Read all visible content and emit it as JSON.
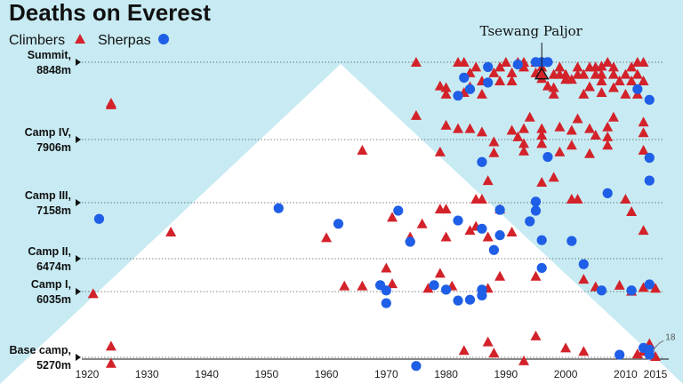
{
  "chart_data": {
    "type": "scatter",
    "title": "Deaths on Everest",
    "legend": [
      {
        "name": "Climbers",
        "color": "#d3222a",
        "marker": "triangle"
      },
      {
        "name": "Sherpas",
        "color": "#1f5ee6",
        "marker": "circle"
      }
    ],
    "y_categories": [
      {
        "line1": "Summit,",
        "line2": "8848m",
        "altitude": 8848
      },
      {
        "line1": "Camp IV,",
        "line2": "7906m",
        "altitude": 7906
      },
      {
        "line1": "Camp III,",
        "line2": "7158m",
        "altitude": 7158
      },
      {
        "line1": "Camp II,",
        "line2": "6474m",
        "altitude": 6474
      },
      {
        "line1": "Camp I,",
        "line2": "6035m",
        "altitude": 6035
      },
      {
        "line1": "Base camp,",
        "line2": "5270m",
        "altitude": 5270
      }
    ],
    "x_ticks": [
      1920,
      1930,
      1940,
      1950,
      1960,
      1970,
      1980,
      1990,
      2000,
      2010,
      2015
    ],
    "xlim": [
      1918,
      2016
    ],
    "grid": "horizontal dotted",
    "annotations": [
      {
        "text": "Tsewang Paljor",
        "x": 1996,
        "y": 8700
      },
      {
        "text": "18",
        "x": 2014,
        "y": 5380
      }
    ],
    "series": [
      {
        "name": "Climbers",
        "points": [
          [
            1975,
            8848
          ],
          [
            1982,
            8848
          ],
          [
            1983,
            8848
          ],
          [
            1990,
            8848
          ],
          [
            1992,
            8848
          ],
          [
            1993,
            8848
          ],
          [
            1995,
            8848
          ],
          [
            1985,
            8790
          ],
          [
            1989,
            8790
          ],
          [
            1993,
            8790
          ],
          [
            1996,
            8790
          ],
          [
            1999,
            8790
          ],
          [
            2002,
            8790
          ],
          [
            2004,
            8790
          ],
          [
            2005,
            8790
          ],
          [
            2006,
            8800
          ],
          [
            2007,
            8848
          ],
          [
            2008,
            8790
          ],
          [
            2011,
            8790
          ],
          [
            2012,
            8848
          ],
          [
            2013,
            8848
          ],
          [
            1984,
            8720
          ],
          [
            1988,
            8720
          ],
          [
            1991,
            8720
          ],
          [
            1995,
            8720
          ],
          [
            1996,
            8700
          ],
          [
            1998,
            8700
          ],
          [
            1999,
            8700
          ],
          [
            2000,
            8700
          ],
          [
            2002,
            8700
          ],
          [
            2003,
            8700
          ],
          [
            2005,
            8700
          ],
          [
            2006,
            8700
          ],
          [
            2008,
            8700
          ],
          [
            2010,
            8700
          ],
          [
            2012,
            8700
          ],
          [
            1986,
            8620
          ],
          [
            1989,
            8620
          ],
          [
            1991,
            8620
          ],
          [
            1996,
            8650
          ],
          [
            2000,
            8640
          ],
          [
            2001,
            8640
          ],
          [
            2006,
            8620
          ],
          [
            2009,
            8620
          ],
          [
            2011,
            8620
          ],
          [
            2013,
            8620
          ],
          [
            1979,
            8560
          ],
          [
            1980,
            8540
          ],
          [
            1984,
            8550
          ],
          [
            1997,
            8560
          ],
          [
            1998,
            8540
          ],
          [
            2004,
            8550
          ],
          [
            2008,
            8540
          ],
          [
            1980,
            8460
          ],
          [
            1983,
            8480
          ],
          [
            1986,
            8460
          ],
          [
            1998,
            8460
          ],
          [
            2003,
            8460
          ],
          [
            2006,
            8480
          ],
          [
            2010,
            8460
          ],
          [
            2012,
            8460
          ],
          [
            1924,
            8350
          ],
          [
            1924,
            8330
          ],
          [
            1975,
            8200
          ],
          [
            1994,
            8180
          ],
          [
            2002,
            8160
          ],
          [
            2008,
            8180
          ],
          [
            2013,
            8120
          ],
          [
            1980,
            8080
          ],
          [
            1982,
            8040
          ],
          [
            1984,
            8040
          ],
          [
            1986,
            8000
          ],
          [
            1991,
            8020
          ],
          [
            1993,
            8040
          ],
          [
            1996,
            8040
          ],
          [
            1999,
            8060
          ],
          [
            2001,
            8020
          ],
          [
            2004,
            8040
          ],
          [
            2007,
            8060
          ],
          [
            1992,
            7940
          ],
          [
            1996,
            7960
          ],
          [
            2005,
            7960
          ],
          [
            2007,
            7940
          ],
          [
            2013,
            7990
          ],
          [
            1988,
            7880
          ],
          [
            1993,
            7860
          ],
          [
            1996,
            7860
          ],
          [
            2001,
            7840
          ],
          [
            2007,
            7840
          ],
          [
            1966,
            7780
          ],
          [
            1979,
            7760
          ],
          [
            1988,
            7750
          ],
          [
            1993,
            7770
          ],
          [
            1999,
            7760
          ],
          [
            2004,
            7740
          ],
          [
            2013,
            7780
          ],
          [
            1987,
            7420
          ],
          [
            1996,
            7400
          ],
          [
            1998,
            7460
          ],
          [
            1985,
            7200
          ],
          [
            1986,
            7200
          ],
          [
            2001,
            7200
          ],
          [
            2002,
            7200
          ],
          [
            2010,
            7200
          ],
          [
            1979,
            7080
          ],
          [
            1980,
            7080
          ],
          [
            1989,
            7080
          ],
          [
            2011,
            7050
          ],
          [
            1971,
            6980
          ],
          [
            1976,
            6900
          ],
          [
            1985,
            6870
          ],
          [
            2013,
            6820
          ],
          [
            1934,
            6800
          ],
          [
            1960,
            6730
          ],
          [
            1974,
            6740
          ],
          [
            1980,
            6740
          ],
          [
            1984,
            6820
          ],
          [
            1987,
            6740
          ],
          [
            1991,
            6800
          ],
          [
            1970,
            6350
          ],
          [
            1979,
            6280
          ],
          [
            1989,
            6240
          ],
          [
            1995,
            6240
          ],
          [
            2003,
            6200
          ],
          [
            1963,
            6110
          ],
          [
            1966,
            6110
          ],
          [
            1971,
            6140
          ],
          [
            1977,
            6080
          ],
          [
            1981,
            6110
          ],
          [
            1987,
            6080
          ],
          [
            2005,
            6100
          ],
          [
            2009,
            6120
          ],
          [
            2011,
            6040
          ],
          [
            2013,
            6090
          ],
          [
            1921,
            6010
          ],
          [
            2015,
            6080
          ],
          [
            1924,
            5400
          ],
          [
            1987,
            5450
          ],
          [
            1995,
            5520
          ],
          [
            2003,
            5340
          ],
          [
            2012,
            5310
          ],
          [
            2013,
            5340
          ],
          [
            2015,
            5280
          ],
          [
            1924,
            5200
          ],
          [
            1983,
            5350
          ],
          [
            1988,
            5320
          ],
          [
            1993,
            5230
          ],
          [
            2000,
            5380
          ],
          [
            2014,
            5430
          ]
        ]
      },
      {
        "name": "Sherpas",
        "points": [
          [
            1987,
            8790
          ],
          [
            1992,
            8820
          ],
          [
            1995,
            8850
          ],
          [
            1996,
            8850
          ],
          [
            1997,
            8850
          ],
          [
            1983,
            8660
          ],
          [
            1987,
            8600
          ],
          [
            1984,
            8520
          ],
          [
            1982,
            8440
          ],
          [
            2012,
            8520
          ],
          [
            2014,
            8390
          ],
          [
            1986,
            7640
          ],
          [
            1997,
            7700
          ],
          [
            2014,
            7690
          ],
          [
            2014,
            7420
          ],
          [
            2007,
            7270
          ],
          [
            1995,
            7170
          ],
          [
            1922,
            6960
          ],
          [
            1952,
            7090
          ],
          [
            1972,
            7060
          ],
          [
            1989,
            7070
          ],
          [
            1995,
            7060
          ],
          [
            1982,
            6940
          ],
          [
            1994,
            6930
          ],
          [
            1962,
            6900
          ],
          [
            1986,
            6840
          ],
          [
            1989,
            6760
          ],
          [
            1996,
            6700
          ],
          [
            2001,
            6690
          ],
          [
            1974,
            6680
          ],
          [
            1988,
            6580
          ],
          [
            2003,
            6400
          ],
          [
            1996,
            6350
          ],
          [
            1969,
            6120
          ],
          [
            1970,
            6050
          ],
          [
            1978,
            6120
          ],
          [
            1980,
            6060
          ],
          [
            1986,
            6060
          ],
          [
            1970,
            5900
          ],
          [
            1982,
            5930
          ],
          [
            1984,
            5940
          ],
          [
            1986,
            5990
          ],
          [
            2006,
            6050
          ],
          [
            2014,
            6130
          ],
          [
            2011,
            6050
          ],
          [
            2013,
            5380
          ],
          [
            2014,
            5360
          ],
          [
            2009,
            5300
          ],
          [
            2014,
            5300
          ],
          [
            1975,
            5170
          ]
        ]
      }
    ]
  }
}
